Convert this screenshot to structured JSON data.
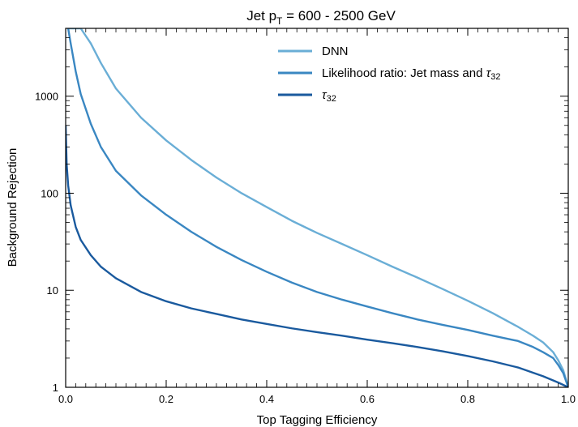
{
  "chart_data": {
    "type": "line",
    "title": {
      "prefix": "Jet p",
      "subscript": "T",
      "suffix": " = 600 - 2500 GeV"
    },
    "xlabel": "Top Tagging Efficiency",
    "ylabel": "Background Rejection",
    "xlim": [
      0.0,
      1.0
    ],
    "ylim": [
      1,
      5000
    ],
    "yscale": "log",
    "x_ticks": [
      "0.0",
      "0.2",
      "0.4",
      "0.6",
      "0.8",
      "1.0"
    ],
    "y_ticks": [
      "1",
      "10",
      "100",
      "1000"
    ],
    "grid": false,
    "legend_position": "top-right",
    "series": [
      {
        "name": "DNN",
        "color": "#6aaed6",
        "x": [
          0.005,
          0.01,
          0.02,
          0.03,
          0.05,
          0.07,
          0.1,
          0.15,
          0.2,
          0.25,
          0.3,
          0.35,
          0.4,
          0.45,
          0.5,
          0.55,
          0.6,
          0.65,
          0.7,
          0.75,
          0.8,
          0.85,
          0.9,
          0.93,
          0.95,
          0.97,
          0.98,
          0.99,
          1.0
        ],
        "values": [
          5000,
          5000,
          5000,
          5000,
          3500,
          2200,
          1200,
          600,
          350,
          220,
          145,
          100,
          72,
          52,
          39,
          30,
          23,
          17.5,
          13.5,
          10.3,
          7.8,
          5.8,
          4.2,
          3.4,
          2.9,
          2.3,
          1.9,
          1.5,
          1.0
        ]
      },
      {
        "name_prefix": "Likelihood ratio: Jet mass and ",
        "name_symbol": "τ",
        "name_sub": "32",
        "color": "#3a87c2",
        "x": [
          0.005,
          0.01,
          0.02,
          0.03,
          0.05,
          0.07,
          0.1,
          0.15,
          0.2,
          0.25,
          0.3,
          0.35,
          0.4,
          0.45,
          0.5,
          0.55,
          0.6,
          0.65,
          0.7,
          0.75,
          0.8,
          0.85,
          0.9,
          0.93,
          0.95,
          0.97,
          0.98,
          0.99,
          1.0
        ],
        "values": [
          5000,
          3500,
          1800,
          1050,
          520,
          300,
          170,
          95,
          60,
          40,
          28,
          20.5,
          15.5,
          12,
          9.6,
          8,
          6.8,
          5.8,
          5,
          4.4,
          3.9,
          3.4,
          3.0,
          2.6,
          2.3,
          2.0,
          1.7,
          1.4,
          1.0
        ]
      },
      {
        "name_symbol": "τ",
        "name_sub": "32",
        "color": "#1a5a9e",
        "x": [
          0.0,
          0.002,
          0.005,
          0.01,
          0.02,
          0.03,
          0.05,
          0.07,
          0.1,
          0.15,
          0.2,
          0.25,
          0.3,
          0.35,
          0.4,
          0.45,
          0.5,
          0.55,
          0.6,
          0.65,
          0.7,
          0.75,
          0.8,
          0.85,
          0.9,
          0.95,
          0.98,
          1.0
        ],
        "values": [
          500,
          200,
          120,
          75,
          45,
          33,
          23,
          17.5,
          13.3,
          9.6,
          7.7,
          6.5,
          5.7,
          5.0,
          4.5,
          4.05,
          3.7,
          3.4,
          3.1,
          2.85,
          2.6,
          2.35,
          2.1,
          1.85,
          1.6,
          1.3,
          1.12,
          1.0
        ]
      }
    ]
  }
}
